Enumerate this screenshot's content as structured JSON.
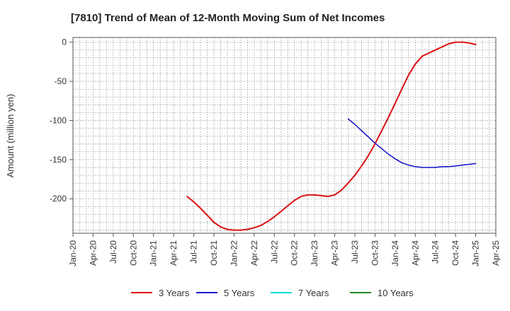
{
  "chart_data": {
    "type": "line",
    "title": "[7810]  Trend of Mean of 12-Month Moving Sum of Net Incomes",
    "xlabel": "",
    "ylabel": "Amount (million yen)",
    "x_ticks": [
      "Jan-20",
      "Apr-20",
      "Jul-20",
      "Oct-20",
      "Jan-21",
      "Apr-21",
      "Jul-21",
      "Oct-21",
      "Jan-22",
      "Apr-22",
      "Jul-22",
      "Oct-22",
      "Jan-23",
      "Apr-23",
      "Jul-23",
      "Oct-23",
      "Jan-24",
      "Apr-24",
      "Jul-24",
      "Oct-24",
      "Jan-25",
      "Apr-25"
    ],
    "y_ticks": [
      0,
      -50,
      -100,
      -150,
      -200
    ],
    "ylim": [
      -244,
      6
    ],
    "grid": true,
    "legend_position": "bottom",
    "series": [
      {
        "name": "3 Years",
        "color": "#dd1111",
        "x": [
          "2021-06",
          "2021-07",
          "2021-08",
          "2021-09",
          "2021-10",
          "2021-11",
          "2021-12",
          "2022-01",
          "2022-02",
          "2022-03",
          "2022-04",
          "2022-05",
          "2022-06",
          "2022-07",
          "2022-08",
          "2022-09",
          "2022-10",
          "2022-11",
          "2022-12",
          "2023-01",
          "2023-02",
          "2023-03",
          "2023-04",
          "2023-05",
          "2023-06",
          "2023-07",
          "2023-08",
          "2023-09",
          "2023-10",
          "2023-11",
          "2023-12",
          "2024-01",
          "2024-02",
          "2024-03",
          "2024-04",
          "2024-05",
          "2024-06",
          "2024-07",
          "2024-08",
          "2024-09",
          "2024-10",
          "2024-11",
          "2024-12",
          "2025-01"
        ],
        "values": [
          -197,
          -204,
          -212,
          -221,
          -230,
          -236,
          -239,
          -240,
          -240,
          -239,
          -237,
          -234,
          -229,
          -223,
          -216,
          -209,
          -202,
          -197,
          -195,
          -195,
          -196,
          -197,
          -195,
          -189,
          -180,
          -170,
          -158,
          -145,
          -130,
          -113,
          -96,
          -78,
          -60,
          -42,
          -28,
          -18,
          -14,
          -10,
          -6,
          -2,
          0,
          0,
          -1,
          -3
        ],
        "line_width": 2
      },
      {
        "name": "5 Years",
        "color": "#1111cc",
        "x": [
          "2023-06",
          "2023-07",
          "2023-08",
          "2023-09",
          "2023-10",
          "2023-11",
          "2023-12",
          "2024-01",
          "2024-02",
          "2024-03",
          "2024-04",
          "2024-05",
          "2024-06",
          "2024-07",
          "2024-08",
          "2024-09",
          "2024-10",
          "2024-11",
          "2024-12",
          "2025-01"
        ],
        "values": [
          -98,
          -105,
          -113,
          -121,
          -129,
          -136,
          -143,
          -149,
          -154,
          -157,
          -159,
          -160,
          -160,
          -160,
          -159,
          -159,
          -158,
          -157,
          -156,
          -155
        ],
        "line_width": 1.5
      },
      {
        "name": "7 Years",
        "color": "#00dddd",
        "x": [],
        "values": []
      },
      {
        "name": "10 Years",
        "color": "#228822",
        "x": [],
        "values": []
      }
    ]
  }
}
